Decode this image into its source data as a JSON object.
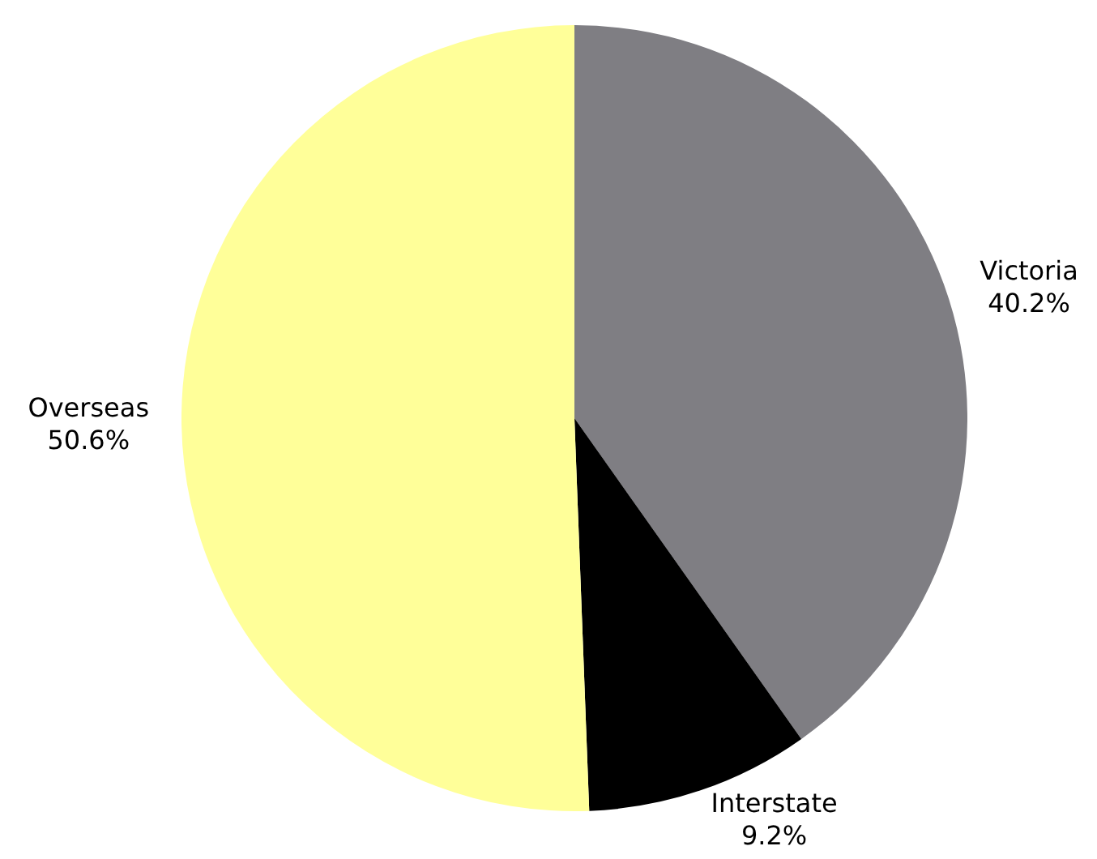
{
  "chart_data": {
    "type": "pie",
    "categories": [
      "Victoria",
      "Interstate",
      "Overseas"
    ],
    "values": [
      40.2,
      9.2,
      50.6
    ],
    "colors": [
      "#7f7e83",
      "#000000",
      "#ffff99"
    ],
    "value_labels": [
      "40.2%",
      "9.2%",
      "50.6%"
    ],
    "legend": false
  }
}
